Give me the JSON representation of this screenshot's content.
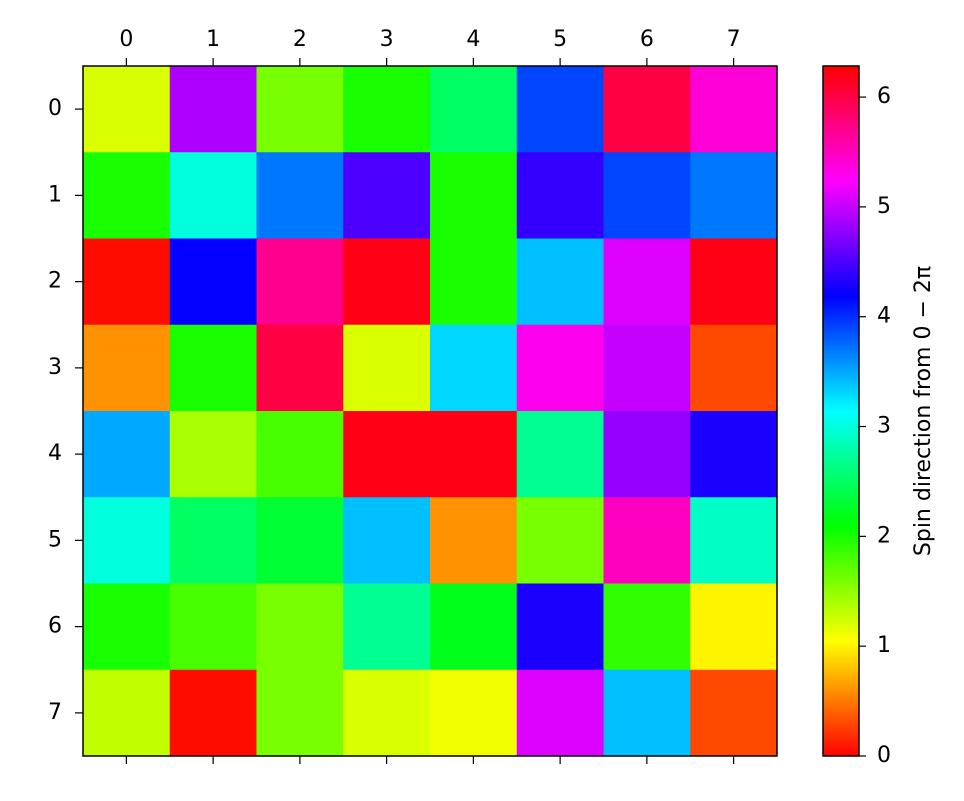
{
  "chart_data": {
    "type": "heatmap",
    "title": "",
    "xlabel": "",
    "ylabel": "",
    "x_ticks": [
      "0",
      "1",
      "2",
      "3",
      "4",
      "5",
      "6",
      "7"
    ],
    "y_ticks": [
      "0",
      "1",
      "2",
      "3",
      "4",
      "5",
      "6",
      "7"
    ],
    "x_tick_position": "top",
    "colormap": "hsv",
    "value_range": [
      0,
      6.283
    ],
    "colorbar": {
      "label": "Spin direction from 0 − 2π",
      "ticks": [
        "0",
        "1",
        "2",
        "3",
        "4",
        "5",
        "6"
      ],
      "placement": "right"
    },
    "values": [
      [
        1.2,
        4.9,
        1.6,
        2.0,
        2.5,
        3.9,
        6.0,
        5.4
      ],
      [
        2.0,
        3.0,
        3.7,
        4.5,
        2.0,
        4.4,
        3.9,
        3.7
      ],
      [
        0.05,
        4.2,
        5.7,
        6.2,
        2.0,
        3.4,
        5.1,
        6.2
      ],
      [
        0.6,
        2.0,
        6.0,
        1.2,
        3.3,
        5.3,
        5.0,
        0.3
      ],
      [
        3.5,
        1.4,
        1.8,
        6.2,
        6.2,
        2.7,
        4.8,
        4.3
      ],
      [
        3.0,
        2.5,
        2.3,
        3.4,
        0.6,
        1.6,
        5.5,
        2.9
      ],
      [
        2.0,
        1.8,
        1.6,
        2.7,
        2.2,
        4.3,
        1.9,
        1.0
      ],
      [
        1.3,
        0.05,
        1.6,
        1.2,
        1.1,
        5.1,
        3.4,
        0.3
      ]
    ]
  }
}
